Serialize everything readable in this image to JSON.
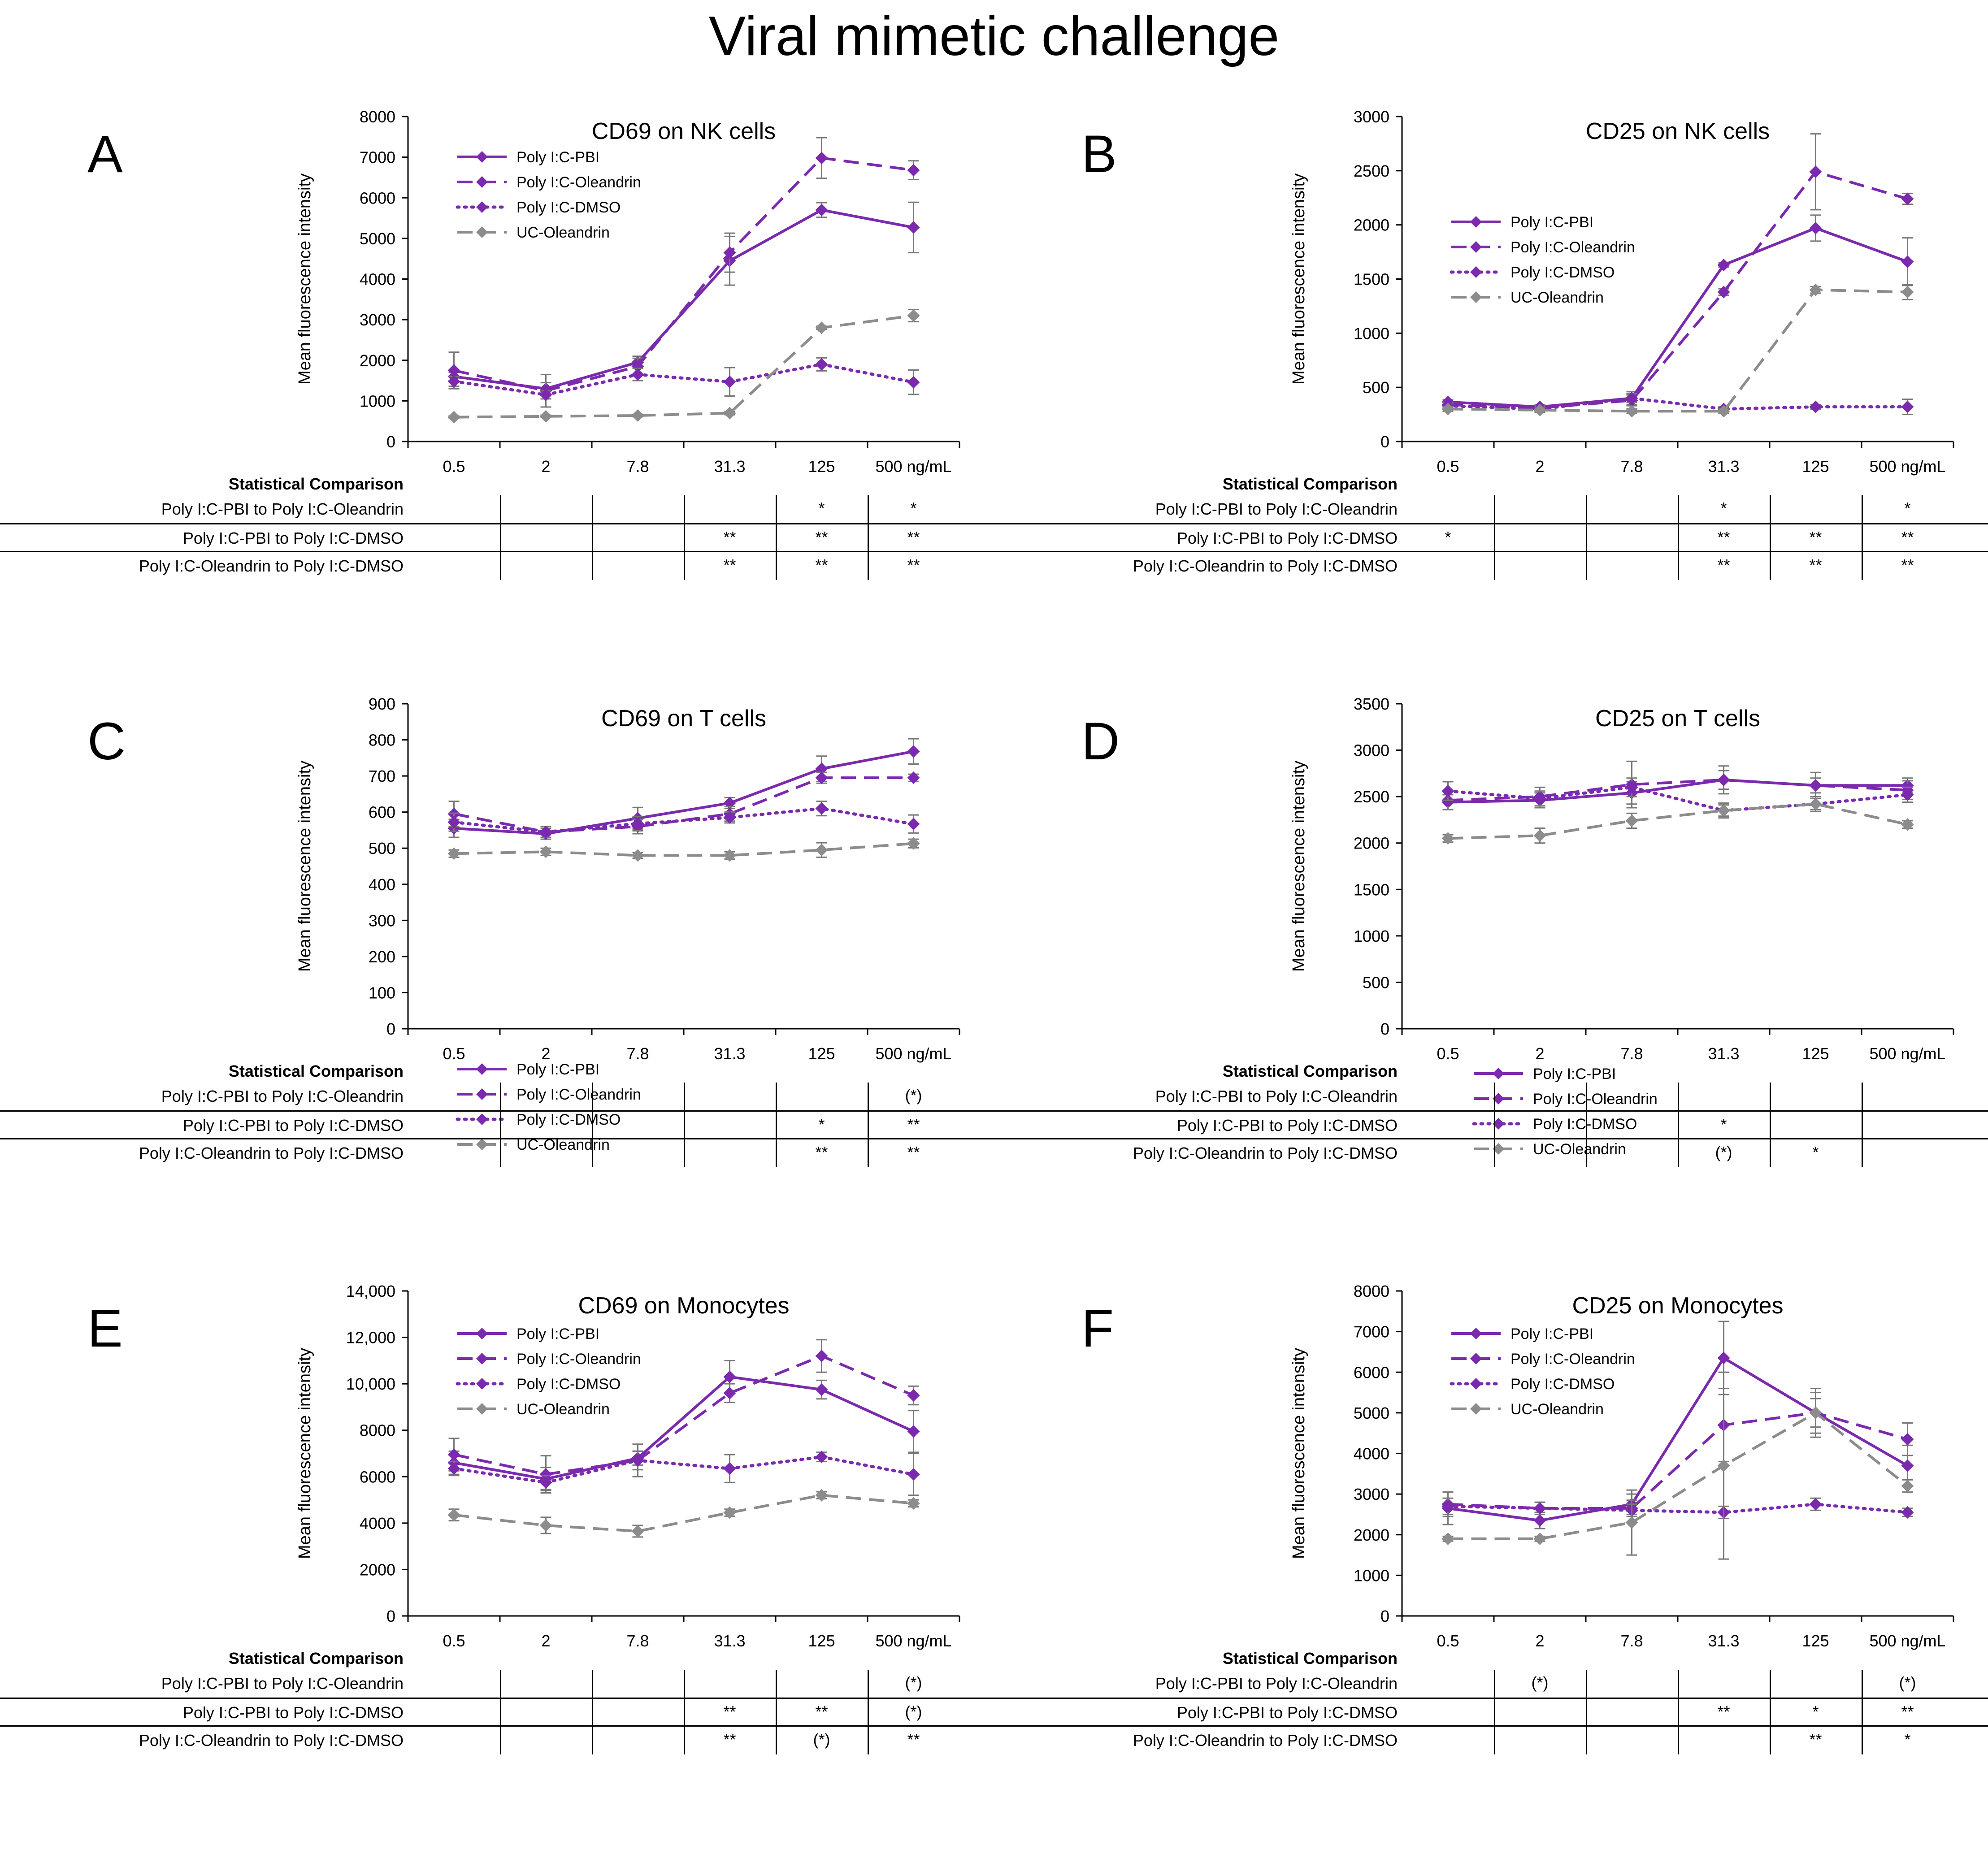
{
  "figure": {
    "title": "Viral mimetic challenge",
    "colors": {
      "purple": "#7B2AAE",
      "gray": "#8C8C8C",
      "error": "#777777",
      "axis": "#000000"
    }
  },
  "chart_data": [
    {
      "id": "A",
      "type": "line",
      "title": "CD69 on NK cells",
      "ylabel": "Mean fluorescence intensity",
      "categories": [
        "0.5",
        "2",
        "7.8",
        "31.3",
        "125",
        "500 ng/mL"
      ],
      "ylim": [
        0,
        8000
      ],
      "yticks": [
        "0",
        "1000",
        "2000",
        "3000",
        "4000",
        "5000",
        "6000",
        "7000",
        "8000"
      ],
      "series": [
        {
          "name": "Poly I:C-PBI",
          "style": "solid",
          "color": "purple",
          "values": [
            1600,
            1300,
            1950,
            4450,
            5700,
            5270
          ],
          "errors": [
            100,
            150,
            150,
            600,
            180,
            620
          ]
        },
        {
          "name": "Poly I:C-Oleandrin",
          "style": "dashed",
          "color": "purple",
          "values": [
            1750,
            1250,
            1850,
            4650,
            6980,
            6680
          ],
          "errors": [
            450,
            400,
            200,
            480,
            500,
            230
          ]
        },
        {
          "name": "Poly I:C-DMSO",
          "style": "dotted",
          "color": "purple",
          "values": [
            1480,
            1150,
            1650,
            1470,
            1900,
            1460
          ],
          "errors": [
            120,
            100,
            150,
            350,
            160,
            300
          ]
        },
        {
          "name": "UC-Oleandrin",
          "style": "dashed",
          "color": "gray",
          "values": [
            600,
            620,
            640,
            700,
            2800,
            3100
          ],
          "errors": [
            30,
            30,
            30,
            40,
            40,
            150
          ]
        }
      ],
      "stats": {
        "heading": "Statistical Comparison",
        "rows": [
          {
            "label": "Poly I:C-PBI to Poly I:C-Oleandrin",
            "marks": [
              "",
              "",
              "",
              "",
              "*",
              "*"
            ]
          },
          {
            "label": "Poly I:C-PBI to Poly I:C-DMSO",
            "marks": [
              "",
              "",
              "",
              "**",
              "**",
              "**"
            ]
          },
          {
            "label": "Poly I:C-Oleandrin to Poly I:C-DMSO",
            "marks": [
              "",
              "",
              "",
              "**",
              "**",
              "**"
            ]
          }
        ]
      }
    },
    {
      "id": "B",
      "type": "line",
      "title": "CD25 on NK cells",
      "ylabel": "Mean fluorescence intensity",
      "categories": [
        "0.5",
        "2",
        "7.8",
        "31.3",
        "125",
        "500 ng/mL"
      ],
      "ylim": [
        0,
        3000
      ],
      "yticks": [
        "0",
        "500",
        "1000",
        "1500",
        "2000",
        "2500",
        "3000"
      ],
      "series": [
        {
          "name": "Poly I:C-PBI",
          "style": "solid",
          "color": "purple",
          "values": [
            365,
            320,
            400,
            1630,
            1970,
            1660
          ],
          "errors": [
            20,
            20,
            60,
            20,
            120,
            220
          ]
        },
        {
          "name": "Poly I:C-Oleandrin",
          "style": "dashed",
          "color": "purple",
          "values": [
            340,
            310,
            380,
            1380,
            2490,
            2240
          ],
          "errors": [
            20,
            20,
            50,
            30,
            350,
            50
          ]
        },
        {
          "name": "Poly I:C-DMSO",
          "style": "dotted",
          "color": "purple",
          "values": [
            330,
            300,
            400,
            300,
            320,
            320
          ],
          "errors": [
            20,
            20,
            40,
            20,
            20,
            70
          ]
        },
        {
          "name": "UC-Oleandrin",
          "style": "dashed",
          "color": "gray",
          "values": [
            300,
            290,
            280,
            280,
            1400,
            1380
          ],
          "errors": [
            20,
            20,
            20,
            20,
            30,
            70
          ]
        }
      ],
      "stats": {
        "heading": "Statistical Comparison",
        "rows": [
          {
            "label": "Poly I:C-PBI to Poly I:C-Oleandrin",
            "marks": [
              "",
              "",
              "",
              "*",
              "",
              "*"
            ]
          },
          {
            "label": "Poly I:C-PBI to Poly I:C-DMSO",
            "marks": [
              "*",
              "",
              "",
              "**",
              "**",
              "**"
            ]
          },
          {
            "label": "Poly I:C-Oleandrin to Poly I:C-DMSO",
            "marks": [
              "",
              "",
              "",
              "**",
              "**",
              "**"
            ]
          }
        ]
      }
    },
    {
      "id": "C",
      "type": "line",
      "title": "CD69 on T cells",
      "ylabel": "Mean fluorescence intensity",
      "categories": [
        "0.5",
        "2",
        "7.8",
        "31.3",
        "125",
        "500 ng/mL"
      ],
      "ylim": [
        0,
        900
      ],
      "yticks": [
        "0",
        "100",
        "200",
        "300",
        "400",
        "500",
        "600",
        "700",
        "800",
        "900"
      ],
      "series": [
        {
          "name": "Poly I:C-PBI",
          "style": "solid",
          "color": "purple",
          "values": [
            555,
            540,
            583,
            625,
            720,
            768
          ],
          "errors": [
            25,
            15,
            30,
            15,
            35,
            35
          ]
        },
        {
          "name": "Poly I:C-Oleandrin",
          "style": "dashed",
          "color": "purple",
          "values": [
            595,
            545,
            560,
            595,
            695,
            695
          ],
          "errors": [
            35,
            15,
            20,
            20,
            15,
            10
          ]
        },
        {
          "name": "Poly I:C-DMSO",
          "style": "dotted",
          "color": "purple",
          "values": [
            572,
            545,
            568,
            585,
            610,
            567
          ],
          "errors": [
            25,
            15,
            20,
            15,
            20,
            25
          ]
        },
        {
          "name": "UC-Oleandrin",
          "style": "dashed",
          "color": "gray",
          "values": [
            485,
            490,
            480,
            480,
            495,
            513
          ],
          "errors": [
            10,
            10,
            8,
            10,
            20,
            12
          ]
        }
      ],
      "stats": {
        "heading": "Statistical Comparison",
        "rows": [
          {
            "label": "Poly I:C-PBI to Poly I:C-Oleandrin",
            "marks": [
              "",
              "",
              "",
              "",
              "",
              "(*)"
            ]
          },
          {
            "label": "Poly I:C-PBI to Poly I:C-DMSO",
            "marks": [
              "",
              "",
              "",
              "",
              "*",
              "**"
            ]
          },
          {
            "label": "Poly I:C-Oleandrin to Poly I:C-DMSO",
            "marks": [
              "",
              "",
              "",
              "",
              "**",
              "**"
            ]
          }
        ]
      }
    },
    {
      "id": "D",
      "type": "line",
      "title": "CD25 on T cells",
      "ylabel": "Mean fluorescence intensity",
      "categories": [
        "0.5",
        "2",
        "7.8",
        "31.3",
        "125",
        "500 ng/mL"
      ],
      "ylim": [
        0,
        3500
      ],
      "yticks": [
        "0",
        "500",
        "1000",
        "1500",
        "2000",
        "2500",
        "3000",
        "3500"
      ],
      "series": [
        {
          "name": "Poly I:C-PBI",
          "style": "solid",
          "color": "purple",
          "values": [
            2440,
            2460,
            2540,
            2680,
            2620,
            2620
          ],
          "errors": [
            80,
            80,
            120,
            100,
            80,
            80
          ]
        },
        {
          "name": "Poly I:C-Oleandrin",
          "style": "dashed",
          "color": "purple",
          "values": [
            2460,
            2500,
            2630,
            2680,
            2620,
            2570
          ],
          "errors": [
            100,
            100,
            250,
            150,
            140,
            100
          ]
        },
        {
          "name": "Poly I:C-DMSO",
          "style": "dotted",
          "color": "purple",
          "values": [
            2560,
            2480,
            2600,
            2350,
            2420,
            2520
          ],
          "errors": [
            100,
            80,
            100,
            80,
            80,
            80
          ]
        },
        {
          "name": "UC-Oleandrin",
          "style": "dashed",
          "color": "gray",
          "values": [
            2050,
            2080,
            2240,
            2350,
            2420,
            2200
          ],
          "errors": [
            40,
            80,
            80,
            60,
            60,
            40
          ]
        }
      ],
      "stats": {
        "heading": "Statistical Comparison",
        "rows": [
          {
            "label": "Poly I:C-PBI to Poly I:C-Oleandrin",
            "marks": [
              "",
              "",
              "",
              "",
              "",
              ""
            ]
          },
          {
            "label": "Poly I:C-PBI to Poly I:C-DMSO",
            "marks": [
              "",
              "",
              "",
              "*",
              "",
              ""
            ]
          },
          {
            "label": "Poly I:C-Oleandrin to Poly I:C-DMSO",
            "marks": [
              "",
              "",
              "",
              "(*)",
              "*",
              ""
            ]
          }
        ]
      }
    },
    {
      "id": "E",
      "type": "line",
      "title": "CD69 on Monocytes",
      "ylabel": "Mean fluorescence intensity",
      "categories": [
        "0.5",
        "2",
        "7.8",
        "31.3",
        "125",
        "500 ng/mL"
      ],
      "ylim": [
        0,
        14000
      ],
      "yticks": [
        "0",
        "2000",
        "4000",
        "6000",
        "8000",
        "10,000",
        "12,000",
        "14,000"
      ],
      "series": [
        {
          "name": "Poly I:C-PBI",
          "style": "solid",
          "color": "purple",
          "values": [
            6600,
            5900,
            6800,
            10300,
            9750,
            7950
          ],
          "errors": [
            500,
            500,
            300,
            700,
            400,
            900
          ]
        },
        {
          "name": "Poly I:C-Oleandrin",
          "style": "dashed",
          "color": "purple",
          "values": [
            6950,
            6100,
            6700,
            9600,
            11200,
            9500
          ],
          "errors": [
            700,
            800,
            700,
            400,
            700,
            400
          ]
        },
        {
          "name": "Poly I:C-DMSO",
          "style": "dotted",
          "color": "purple",
          "values": [
            6350,
            5750,
            6700,
            6350,
            6850,
            6100
          ],
          "errors": [
            300,
            300,
            400,
            600,
            200,
            900
          ]
        },
        {
          "name": "UC-Oleandrin",
          "style": "dashed",
          "color": "gray",
          "values": [
            4350,
            3900,
            3650,
            4450,
            5200,
            4850
          ],
          "errors": [
            250,
            350,
            250,
            150,
            150,
            150
          ]
        }
      ],
      "stats": {
        "heading": "Statistical Comparison",
        "rows": [
          {
            "label": "Poly I:C-PBI to Poly I:C-Oleandrin",
            "marks": [
              "",
              "",
              "",
              "",
              "",
              "(*)"
            ]
          },
          {
            "label": "Poly I:C-PBI to Poly I:C-DMSO",
            "marks": [
              "",
              "",
              "",
              "**",
              "**",
              "(*)"
            ]
          },
          {
            "label": "Poly I:C-Oleandrin to Poly I:C-DMSO",
            "marks": [
              "",
              "",
              "",
              "**",
              "(*)",
              "**"
            ]
          }
        ]
      }
    },
    {
      "id": "F",
      "type": "line",
      "title": "CD25 on Monocytes",
      "ylabel": "Mean fluorescence intensity",
      "categories": [
        "0.5",
        "2",
        "7.8",
        "31.3",
        "125",
        "500 ng/mL"
      ],
      "ylim": [
        0,
        8000
      ],
      "yticks": [
        "0",
        "1000",
        "2000",
        "3000",
        "4000",
        "5000",
        "6000",
        "7000",
        "8000"
      ],
      "series": [
        {
          "name": "Poly I:C-PBI",
          "style": "solid",
          "color": "purple",
          "values": [
            2650,
            2350,
            2750,
            6350,
            5000,
            3700
          ],
          "errors": [
            400,
            200,
            250,
            900,
            500,
            500
          ]
        },
        {
          "name": "Poly I:C-Oleandrin",
          "style": "dashed",
          "color": "purple",
          "values": [
            2750,
            2650,
            2650,
            4700,
            5000,
            4350
          ],
          "errors": [
            300,
            150,
            200,
            900,
            350,
            400
          ]
        },
        {
          "name": "Poly I:C-DMSO",
          "style": "dotted",
          "color": "purple",
          "values": [
            2700,
            2650,
            2600,
            2550,
            2750,
            2550
          ],
          "errors": [
            200,
            150,
            150,
            150,
            150,
            100
          ]
        },
        {
          "name": "UC-Oleandrin",
          "style": "dashed",
          "color": "gray",
          "values": [
            1900,
            1900,
            2300,
            3700,
            5000,
            3200
          ],
          "errors": [
            60,
            60,
            800,
            2300,
            600,
            150
          ]
        }
      ],
      "stats": {
        "heading": "Statistical Comparison",
        "rows": [
          {
            "label": "Poly I:C-PBI to Poly I:C-Oleandrin",
            "marks": [
              "",
              "(*)",
              "",
              "",
              "",
              "(*)"
            ]
          },
          {
            "label": "Poly I:C-PBI to Poly I:C-DMSO",
            "marks": [
              "",
              "",
              "",
              "**",
              "*",
              "**"
            ]
          },
          {
            "label": "Poly I:C-Oleandrin to Poly I:C-DMSO",
            "marks": [
              "",
              "",
              "",
              "",
              "**",
              "*"
            ]
          }
        ]
      }
    }
  ]
}
